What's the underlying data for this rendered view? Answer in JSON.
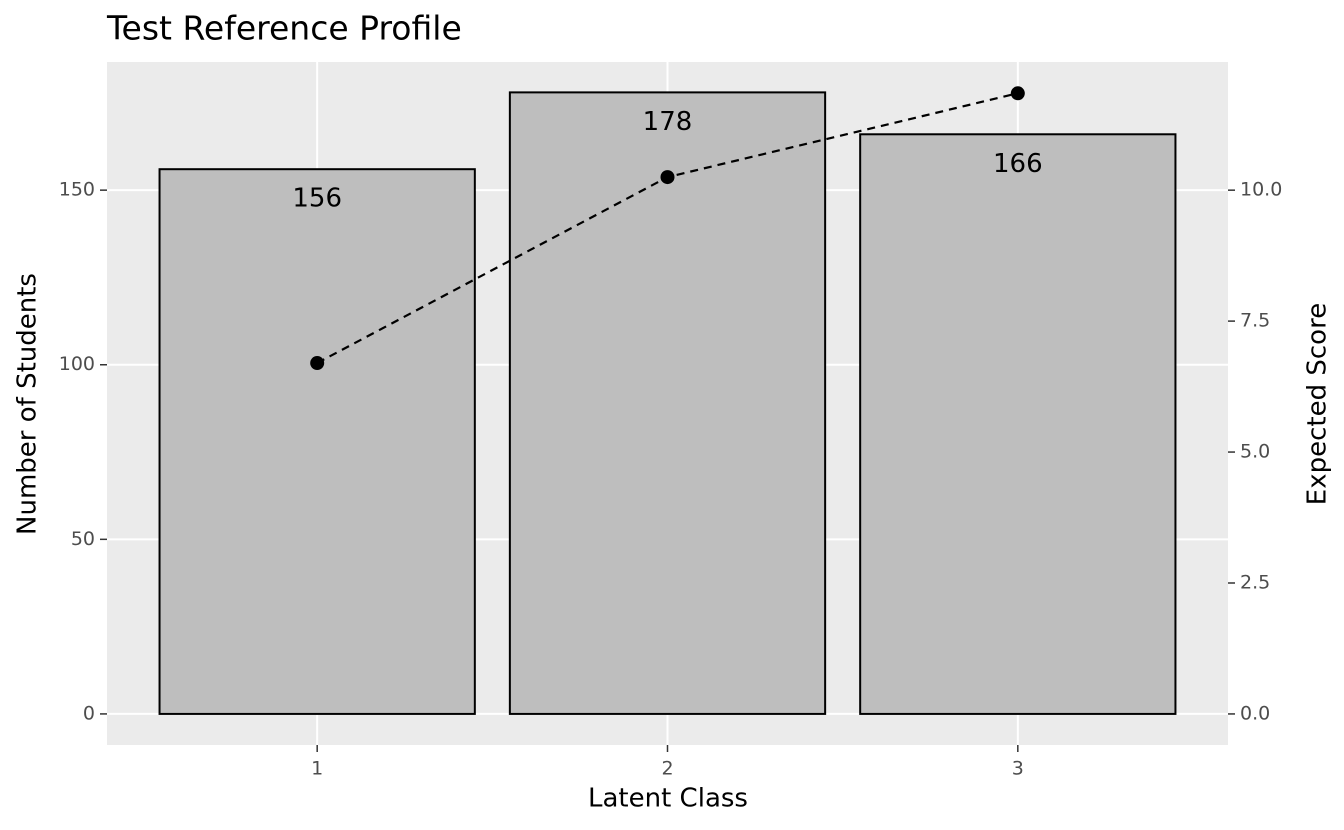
{
  "chart_data": {
    "type": "bar",
    "title": "Test Reference Profile",
    "xlabel": "Latent Class",
    "ylabel": "Number of Students",
    "y2label": "Expected Score",
    "categories": [
      "1",
      "2",
      "3"
    ],
    "series": [
      {
        "type": "bar",
        "color": "#bebebe",
        "values": [
          156,
          178,
          166
        ]
      },
      {
        "type": "line",
        "axis": "y2",
        "color": "#000000",
        "values": [
          6.7,
          10.25,
          11.85
        ]
      }
    ],
    "ylim": [
      -8.9,
      186.7
    ],
    "yticks": [
      0,
      50,
      100,
      150
    ],
    "y2lim": [
      -0.593,
      12.447
    ],
    "y2ticks": [
      {
        "value": 0,
        "label": "0.0"
      },
      2.5,
      {
        "value": 5,
        "label": "5.0"
      },
      7.5,
      {
        "value": 10,
        "label": "10.0"
      }
    ],
    "grid": true,
    "background": "#ebebeb"
  }
}
